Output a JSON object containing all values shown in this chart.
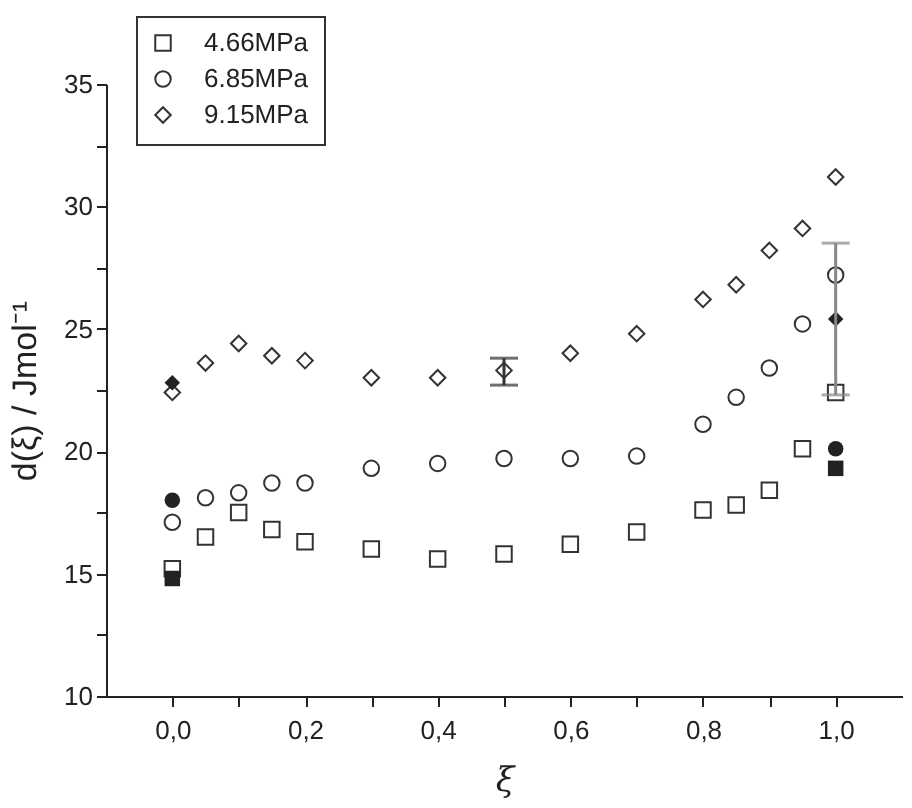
{
  "chart_data": {
    "type": "scatter",
    "xlabel": "ξ",
    "ylabel": "d(ξ) / Jmol⁻¹",
    "xlim": [
      -0.1,
      1.1
    ],
    "ylim": [
      10,
      35
    ],
    "xticks": [
      {
        "value": 0,
        "label": "0,0"
      },
      {
        "value": 0.1,
        "label": null
      },
      {
        "value": 0.2,
        "label": "0,2"
      },
      {
        "value": 0.3,
        "label": null
      },
      {
        "value": 0.4,
        "label": "0,4"
      },
      {
        "value": 0.5,
        "label": null
      },
      {
        "value": 0.6,
        "label": "0,6"
      },
      {
        "value": 0.7,
        "label": null
      },
      {
        "value": 0.8,
        "label": "0,8"
      },
      {
        "value": 0.9,
        "label": null
      },
      {
        "value": 1.0,
        "label": "1,0"
      }
    ],
    "yticks": [
      10,
      {
        "value": 12.5,
        "label": null
      },
      15,
      {
        "value": 17.5,
        "label": null
      },
      20,
      {
        "value": 22.5,
        "label": null
      },
      25,
      {
        "value": 27.5,
        "label": null
      },
      30,
      {
        "value": 32.5,
        "label": null
      },
      35
    ],
    "grid": false,
    "legend": "top left",
    "series": [
      {
        "name": "4.66MPa",
        "color": "#333333",
        "marker": "square",
        "x": [
          0,
          0.05,
          0.1,
          0.15,
          0.2,
          0.3,
          0.4,
          0.5,
          0.6,
          0.7,
          0.8,
          0.85,
          0.9,
          0.95,
          1.0
        ],
        "values": [
          15.2,
          16.5,
          17.5,
          16.8,
          16.3,
          16.0,
          15.6,
          15.8,
          16.2,
          16.7,
          17.6,
          17.8,
          18.4,
          20.1,
          22.4
        ]
      },
      {
        "name": "6.85MPa",
        "color": "#333333",
        "marker": "circle",
        "x": [
          0,
          0.05,
          0.1,
          0.15,
          0.2,
          0.3,
          0.4,
          0.5,
          0.6,
          0.7,
          0.8,
          0.85,
          0.9,
          0.95,
          1.0
        ],
        "values": [
          17.1,
          18.1,
          18.3,
          18.7,
          18.7,
          19.3,
          19.5,
          19.7,
          19.7,
          19.8,
          21.1,
          22.2,
          23.4,
          25.2,
          27.2
        ]
      },
      {
        "name": "9.15MPa",
        "color": "#333333",
        "marker": "diamond",
        "x": [
          0,
          0.05,
          0.1,
          0.15,
          0.2,
          0.3,
          0.4,
          0.5,
          0.6,
          0.7,
          0.8,
          0.85,
          0.9,
          0.95,
          1.0
        ],
        "values": [
          22.4,
          23.6,
          24.4,
          23.9,
          23.7,
          23.0,
          23.0,
          23.3,
          24.0,
          24.8,
          26.2,
          26.8,
          28.2,
          29.1,
          31.2
        ],
        "errors": [
          null,
          null,
          null,
          null,
          null,
          null,
          null,
          [
            22.7,
            23.8
          ],
          null,
          null,
          null,
          null,
          null,
          null,
          null
        ]
      },
      {
        "color": "#222222",
        "marker": "square",
        "x": [
          0,
          1.0
        ],
        "values": [
          14.8,
          19.3
        ]
      },
      {
        "color": "#222222",
        "marker": "circle",
        "x": [
          0,
          1.0
        ],
        "values": [
          18.0,
          20.1
        ]
      },
      {
        "color": "#222222",
        "marker": "diamond",
        "x": [
          0,
          1.0
        ],
        "values": [
          22.8,
          25.4
        ],
        "errors": [
          null,
          [
            22.3,
            28.5
          ]
        ]
      }
    ]
  }
}
